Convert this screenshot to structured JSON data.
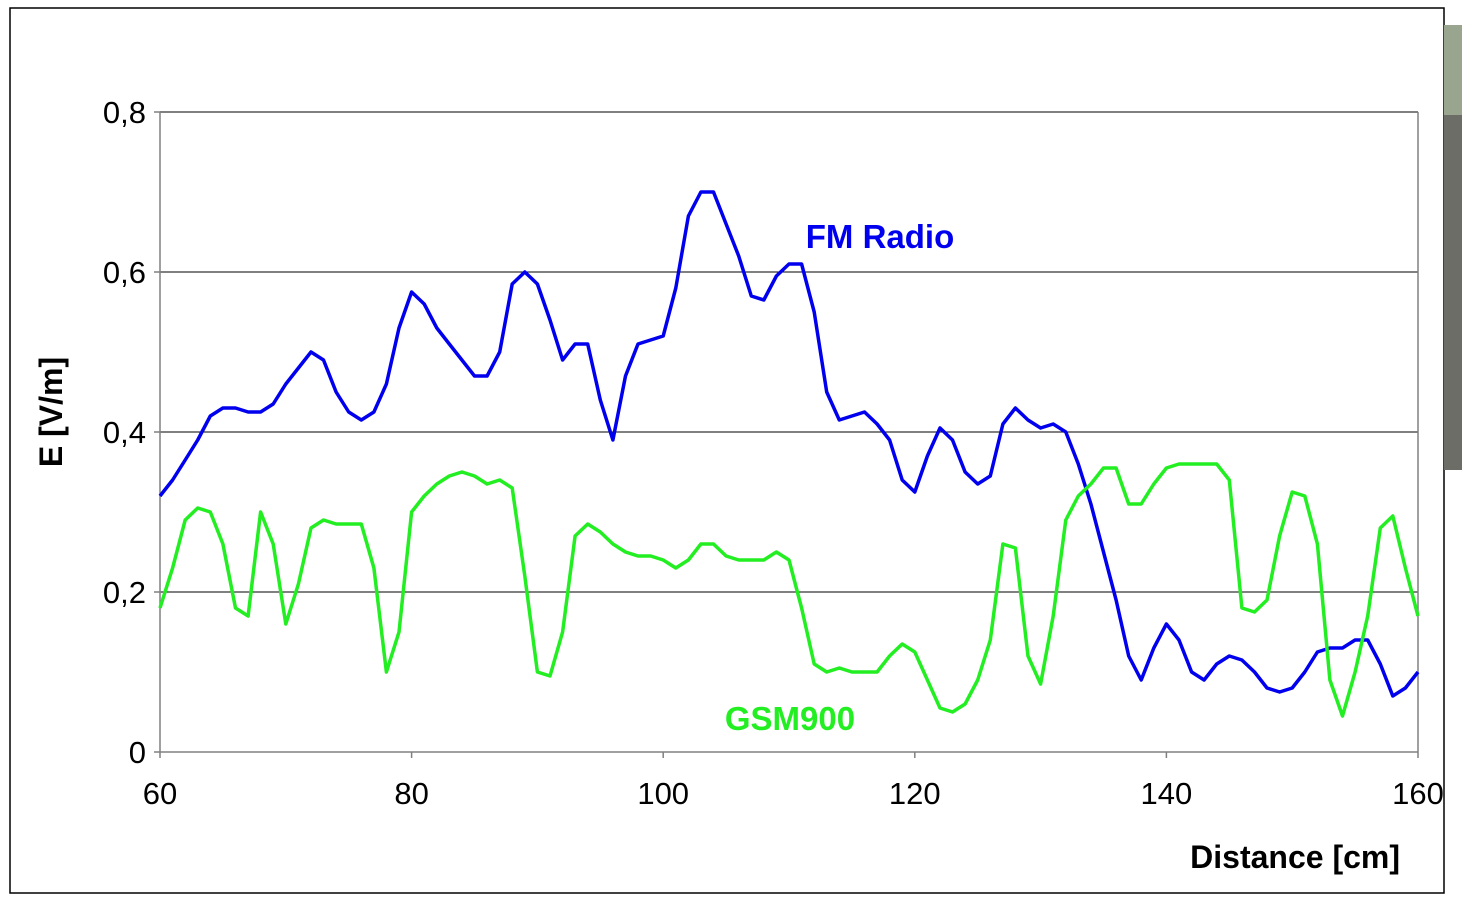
{
  "chart_data": {
    "type": "line",
    "xlabel": "Distance [cm]",
    "ylabel": "E [V/m]",
    "x": [
      60,
      61,
      62,
      63,
      64,
      65,
      66,
      67,
      68,
      69,
      70,
      71,
      72,
      73,
      74,
      75,
      76,
      77,
      78,
      79,
      80,
      81,
      82,
      83,
      84,
      85,
      86,
      87,
      88,
      89,
      90,
      91,
      92,
      93,
      94,
      95,
      96,
      97,
      98,
      99,
      100,
      101,
      102,
      103,
      104,
      105,
      106,
      107,
      108,
      109,
      110,
      111,
      112,
      113,
      114,
      115,
      116,
      117,
      118,
      119,
      120,
      121,
      122,
      123,
      124,
      125,
      126,
      127,
      128,
      129,
      130,
      131,
      132,
      133,
      134,
      135,
      136,
      137,
      138,
      139,
      140,
      141,
      142,
      143,
      144,
      145,
      146,
      147,
      148,
      149,
      150,
      151,
      152,
      153,
      154,
      155,
      156,
      157,
      158,
      159,
      160
    ],
    "series": [
      {
        "name": "FM Radio",
        "color": "#0000ee",
        "values": [
          0.32,
          0.34,
          0.365,
          0.39,
          0.42,
          0.43,
          0.43,
          0.425,
          0.425,
          0.435,
          0.46,
          0.48,
          0.5,
          0.49,
          0.45,
          0.425,
          0.415,
          0.425,
          0.46,
          0.53,
          0.575,
          0.56,
          0.53,
          0.51,
          0.49,
          0.47,
          0.47,
          0.5,
          0.585,
          0.6,
          0.585,
          0.54,
          0.49,
          0.51,
          0.51,
          0.44,
          0.39,
          0.47,
          0.51,
          0.515,
          0.52,
          0.58,
          0.67,
          0.7,
          0.7,
          0.66,
          0.62,
          0.57,
          0.565,
          0.595,
          0.61,
          0.61,
          0.55,
          0.45,
          0.415,
          0.42,
          0.425,
          0.41,
          0.39,
          0.34,
          0.325,
          0.37,
          0.405,
          0.39,
          0.35,
          0.335,
          0.345,
          0.41,
          0.43,
          0.415,
          0.405,
          0.41,
          0.4,
          0.36,
          0.31,
          0.25,
          0.19,
          0.12,
          0.09,
          0.13,
          0.16,
          0.14,
          0.1,
          0.09,
          0.11,
          0.12,
          0.115,
          0.1,
          0.08,
          0.075,
          0.08,
          0.1,
          0.125,
          0.13,
          0.13,
          0.14,
          0.14,
          0.11,
          0.07,
          0.08,
          0.1
        ]
      },
      {
        "name": "GSM900",
        "color": "#22ee22",
        "values": [
          0.18,
          0.23,
          0.29,
          0.305,
          0.3,
          0.26,
          0.18,
          0.17,
          0.3,
          0.26,
          0.16,
          0.21,
          0.28,
          0.29,
          0.285,
          0.285,
          0.285,
          0.23,
          0.1,
          0.15,
          0.3,
          0.32,
          0.335,
          0.345,
          0.35,
          0.345,
          0.335,
          0.34,
          0.33,
          0.22,
          0.1,
          0.095,
          0.15,
          0.27,
          0.285,
          0.275,
          0.26,
          0.25,
          0.245,
          0.245,
          0.24,
          0.23,
          0.24,
          0.26,
          0.26,
          0.245,
          0.24,
          0.24,
          0.24,
          0.25,
          0.24,
          0.18,
          0.11,
          0.1,
          0.105,
          0.1,
          0.1,
          0.1,
          0.12,
          0.135,
          0.125,
          0.09,
          0.055,
          0.05,
          0.06,
          0.09,
          0.14,
          0.26,
          0.255,
          0.12,
          0.085,
          0.17,
          0.29,
          0.32,
          0.335,
          0.355,
          0.355,
          0.31,
          0.31,
          0.335,
          0.355,
          0.36,
          0.36,
          0.36,
          0.36,
          0.34,
          0.18,
          0.175,
          0.19,
          0.27,
          0.325,
          0.32,
          0.26,
          0.09,
          0.045,
          0.1,
          0.17,
          0.28,
          0.295,
          0.23,
          0.17
        ]
      }
    ],
    "xlim": [
      60,
      160
    ],
    "xticks": [
      60,
      80,
      100,
      120,
      140,
      160
    ],
    "ylim": [
      0,
      0.8
    ],
    "yticks": [
      0,
      {
        "value": 0.2,
        "label": "0,2"
      },
      {
        "value": 0.4,
        "label": "0,4"
      },
      {
        "value": 0.6,
        "label": "0,6"
      },
      {
        "value": 0.8,
        "label": "0,8"
      }
    ],
    "grid": true
  }
}
